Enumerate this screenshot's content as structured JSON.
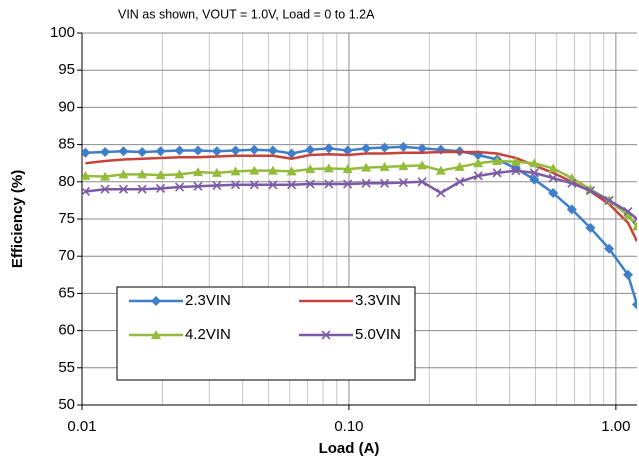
{
  "chart_data": {
    "type": "line",
    "title": "VIN as shown, VOUT = 1.0V, Load = 0 to 1.2A",
    "xlabel": "Load (A)",
    "ylabel": "Efficiency (%)",
    "xscale": "log",
    "grid": true,
    "legend": "lower left",
    "xlim": [
      0.01,
      1.2
    ],
    "ylim": [
      50,
      100
    ],
    "xticks": [
      0.01,
      {
        "value": 0.1,
        "label": "0.10"
      },
      {
        "value": 1,
        "label": "1.00"
      }
    ],
    "xgrid_minor": [
      0.02,
      0.03,
      0.04,
      0.05,
      0.06,
      0.07,
      0.08,
      0.09,
      0.2,
      0.3,
      0.4,
      0.5,
      0.6,
      0.7,
      0.8,
      0.9
    ],
    "yticks": [
      50,
      55,
      60,
      65,
      70,
      75,
      80,
      85,
      90,
      95,
      100
    ],
    "x": [
      0.0103,
      0.0122,
      0.0143,
      0.0168,
      0.0197,
      0.0232,
      0.0272,
      0.032,
      0.0376,
      0.0442,
      0.0519,
      0.061,
      0.0716,
      0.0841,
      0.0989,
      0.116,
      0.136,
      0.16,
      0.188,
      0.221,
      0.26,
      0.305,
      0.359,
      0.422,
      0.495,
      0.582,
      0.684,
      0.803,
      0.944,
      1.11,
      1.2
    ],
    "series": [
      {
        "name": "2.3VIN",
        "color": "#3f7fc9",
        "marker": "diamond",
        "values": [
          83.9,
          84,
          84.1,
          84,
          84.1,
          84.2,
          84.2,
          84.1,
          84.2,
          84.3,
          84.2,
          83.8,
          84.3,
          84.5,
          84.2,
          84.5,
          84.6,
          84.7,
          84.5,
          84.3,
          84.1,
          83.6,
          83,
          81.8,
          80.3,
          78.5,
          76.3,
          73.8,
          71,
          67.5,
          63.5
        ]
      },
      {
        "name": "3.3VIN",
        "color": "#c8423c",
        "marker": "none",
        "values": [
          82.5,
          82.8,
          83,
          83.1,
          83.2,
          83.3,
          83.3,
          83.4,
          83.5,
          83.5,
          83.5,
          83.1,
          83.6,
          83.7,
          83.6,
          83.8,
          83.8,
          83.9,
          83.9,
          84,
          84,
          84,
          83.8,
          83.2,
          82.2,
          81.2,
          80,
          78.7,
          77,
          74.5,
          72
        ]
      },
      {
        "name": "4.2VIN",
        "color": "#94bb3b",
        "marker": "triangle",
        "values": [
          80.8,
          80.7,
          81,
          81,
          80.9,
          81,
          81.3,
          81.2,
          81.4,
          81.5,
          81.5,
          81.4,
          81.7,
          81.8,
          81.7,
          81.9,
          82,
          82.1,
          82.2,
          81.5,
          82,
          82.5,
          82.8,
          82.7,
          82.5,
          81.8,
          80.5,
          79,
          77.5,
          75.5,
          74
        ]
      },
      {
        "name": "5.0VIN",
        "color": "#7b5aa6",
        "marker": "x",
        "values": [
          78.7,
          79,
          79,
          79,
          79.1,
          79.3,
          79.4,
          79.5,
          79.6,
          79.6,
          79.6,
          79.6,
          79.7,
          79.7,
          79.7,
          79.8,
          79.8,
          79.9,
          80,
          78.5,
          80,
          80.8,
          81.2,
          81.5,
          81.2,
          80.5,
          79.8,
          78.8,
          77.5,
          76,
          75
        ]
      }
    ]
  }
}
